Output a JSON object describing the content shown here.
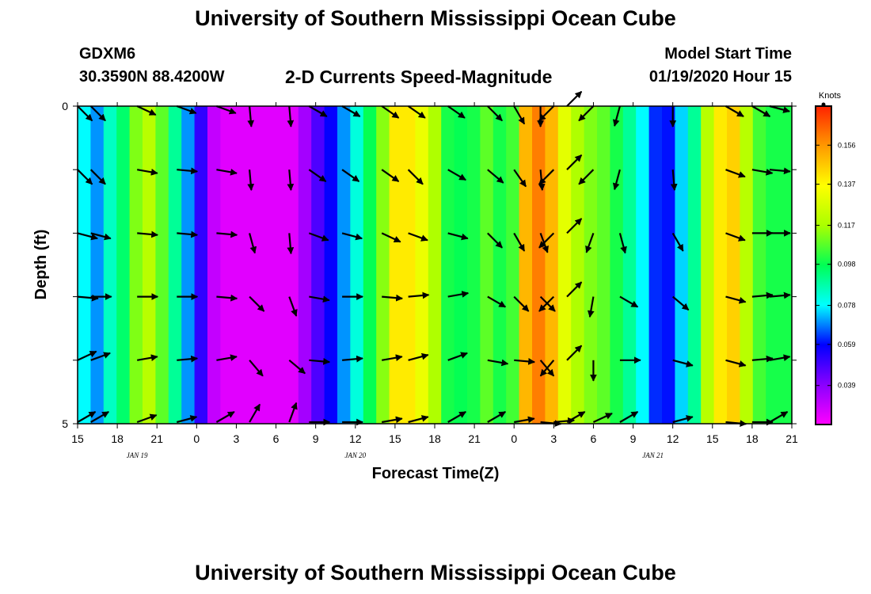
{
  "header": {
    "title": "University of Southern Mississippi Ocean Cube",
    "station": "GDXM6",
    "coords": "30.3590N 88.4200W",
    "subtitle": "2-D Currents Speed-Magnitude",
    "model_start_label": "Model Start Time",
    "model_start_value": "01/19/2020 Hour 15"
  },
  "footer": {
    "title": "University of Southern Mississippi Ocean Cube"
  },
  "colors": {
    "colormap": [
      "#ff00ff",
      "#8a00ff",
      "#0000ff",
      "#00ffff",
      "#00ff55",
      "#aaff00",
      "#ffff00",
      "#ff9900",
      "#ff2200"
    ],
    "arrow": "#000000",
    "frame": "#000000"
  },
  "chart_data": {
    "type": "heatmap",
    "xlabel": "Forecast Time(Z)",
    "ylabel": "Depth (ft)",
    "x_tick_labels": [
      "15",
      "18",
      "21",
      "0",
      "3",
      "6",
      "9",
      "12",
      "15",
      "18",
      "21",
      "0",
      "3",
      "6",
      "9",
      "12",
      "15",
      "18",
      "21"
    ],
    "x_hours_range": [
      0,
      54
    ],
    "date_labels": [
      {
        "text": "JAN 19",
        "hour": 4.5
      },
      {
        "text": "JAN 20",
        "hour": 21
      },
      {
        "text": "JAN 21",
        "hour": 43.5
      }
    ],
    "y_tick_labels": [
      "0",
      "5"
    ],
    "depth_range": [
      0,
      5
    ],
    "colorbar": {
      "units": "Knots",
      "min": 0.02,
      "max": 0.175,
      "ticks": [
        0.156,
        0.137,
        0.117,
        0.098,
        0.078,
        0.059,
        0.039
      ],
      "tick_labels": [
        "0.156",
        "0.137",
        "0.117",
        "0.098",
        "0.078",
        "0.059",
        "0.039"
      ]
    },
    "speed_by_hour_knots": [
      0.078,
      0.07,
      0.085,
      0.095,
      0.112,
      0.12,
      0.108,
      0.09,
      0.07,
      0.052,
      0.03,
      0.025,
      0.025,
      0.025,
      0.025,
      0.025,
      0.025,
      0.035,
      0.048,
      0.058,
      0.07,
      0.082,
      0.098,
      0.113,
      0.14,
      0.14,
      0.132,
      0.118,
      0.1,
      0.098,
      0.1,
      0.108,
      0.1,
      0.105,
      0.15,
      0.16,
      0.15,
      0.13,
      0.118,
      0.112,
      0.108,
      0.1,
      0.09,
      0.078,
      0.062,
      0.06,
      0.075,
      0.09,
      0.12,
      0.14,
      0.145,
      0.12,
      0.105,
      0.1,
      0.1
    ],
    "depth_levels_ft": [
      0,
      1,
      2,
      3,
      4,
      5
    ],
    "vector_hours": [
      0,
      1,
      4.5,
      7.5,
      10.5,
      13,
      16,
      17.5,
      20,
      23,
      25,
      28,
      31,
      33,
      35,
      36,
      37,
      39,
      41,
      45,
      49,
      51,
      54
    ],
    "vectors_deg_by_hour": [
      [
        135,
        135,
        105,
        95,
        65,
        60
      ],
      [
        135,
        135,
        105,
        90,
        70,
        60
      ],
      [
        115,
        100,
        95,
        90,
        80,
        70
      ],
      [
        110,
        95,
        95,
        90,
        85,
        75
      ],
      [
        110,
        100,
        95,
        95,
        80,
        60
      ],
      [
        175,
        175,
        165,
        135,
        140,
        30
      ],
      [
        175,
        175,
        175,
        160,
        130,
        20
      ],
      [
        120,
        125,
        110,
        100,
        95,
        90
      ],
      [
        120,
        125,
        105,
        90,
        85,
        90
      ],
      [
        125,
        125,
        115,
        95,
        80,
        80
      ],
      [
        125,
        135,
        110,
        85,
        75,
        75
      ],
      [
        125,
        120,
        105,
        80,
        70,
        60
      ],
      [
        135,
        130,
        135,
        120,
        100,
        60
      ],
      [
        150,
        145,
        150,
        135,
        95,
        80
      ],
      [
        180,
        175,
        160,
        135,
        140,
        95
      ],
      [
        225,
        225,
        225,
        225,
        220,
        85
      ],
      [
        45,
        45,
        45,
        45,
        45,
        60
      ],
      [
        225,
        225,
        200,
        190,
        180,
        65
      ],
      [
        195,
        195,
        165,
        120,
        90,
        60
      ],
      [
        180,
        175,
        150,
        130,
        105,
        75
      ],
      [
        120,
        110,
        110,
        105,
        105,
        95
      ],
      [
        120,
        100,
        90,
        85,
        85,
        90
      ],
      [
        105,
        95,
        90,
        85,
        80,
        60
      ]
    ]
  }
}
